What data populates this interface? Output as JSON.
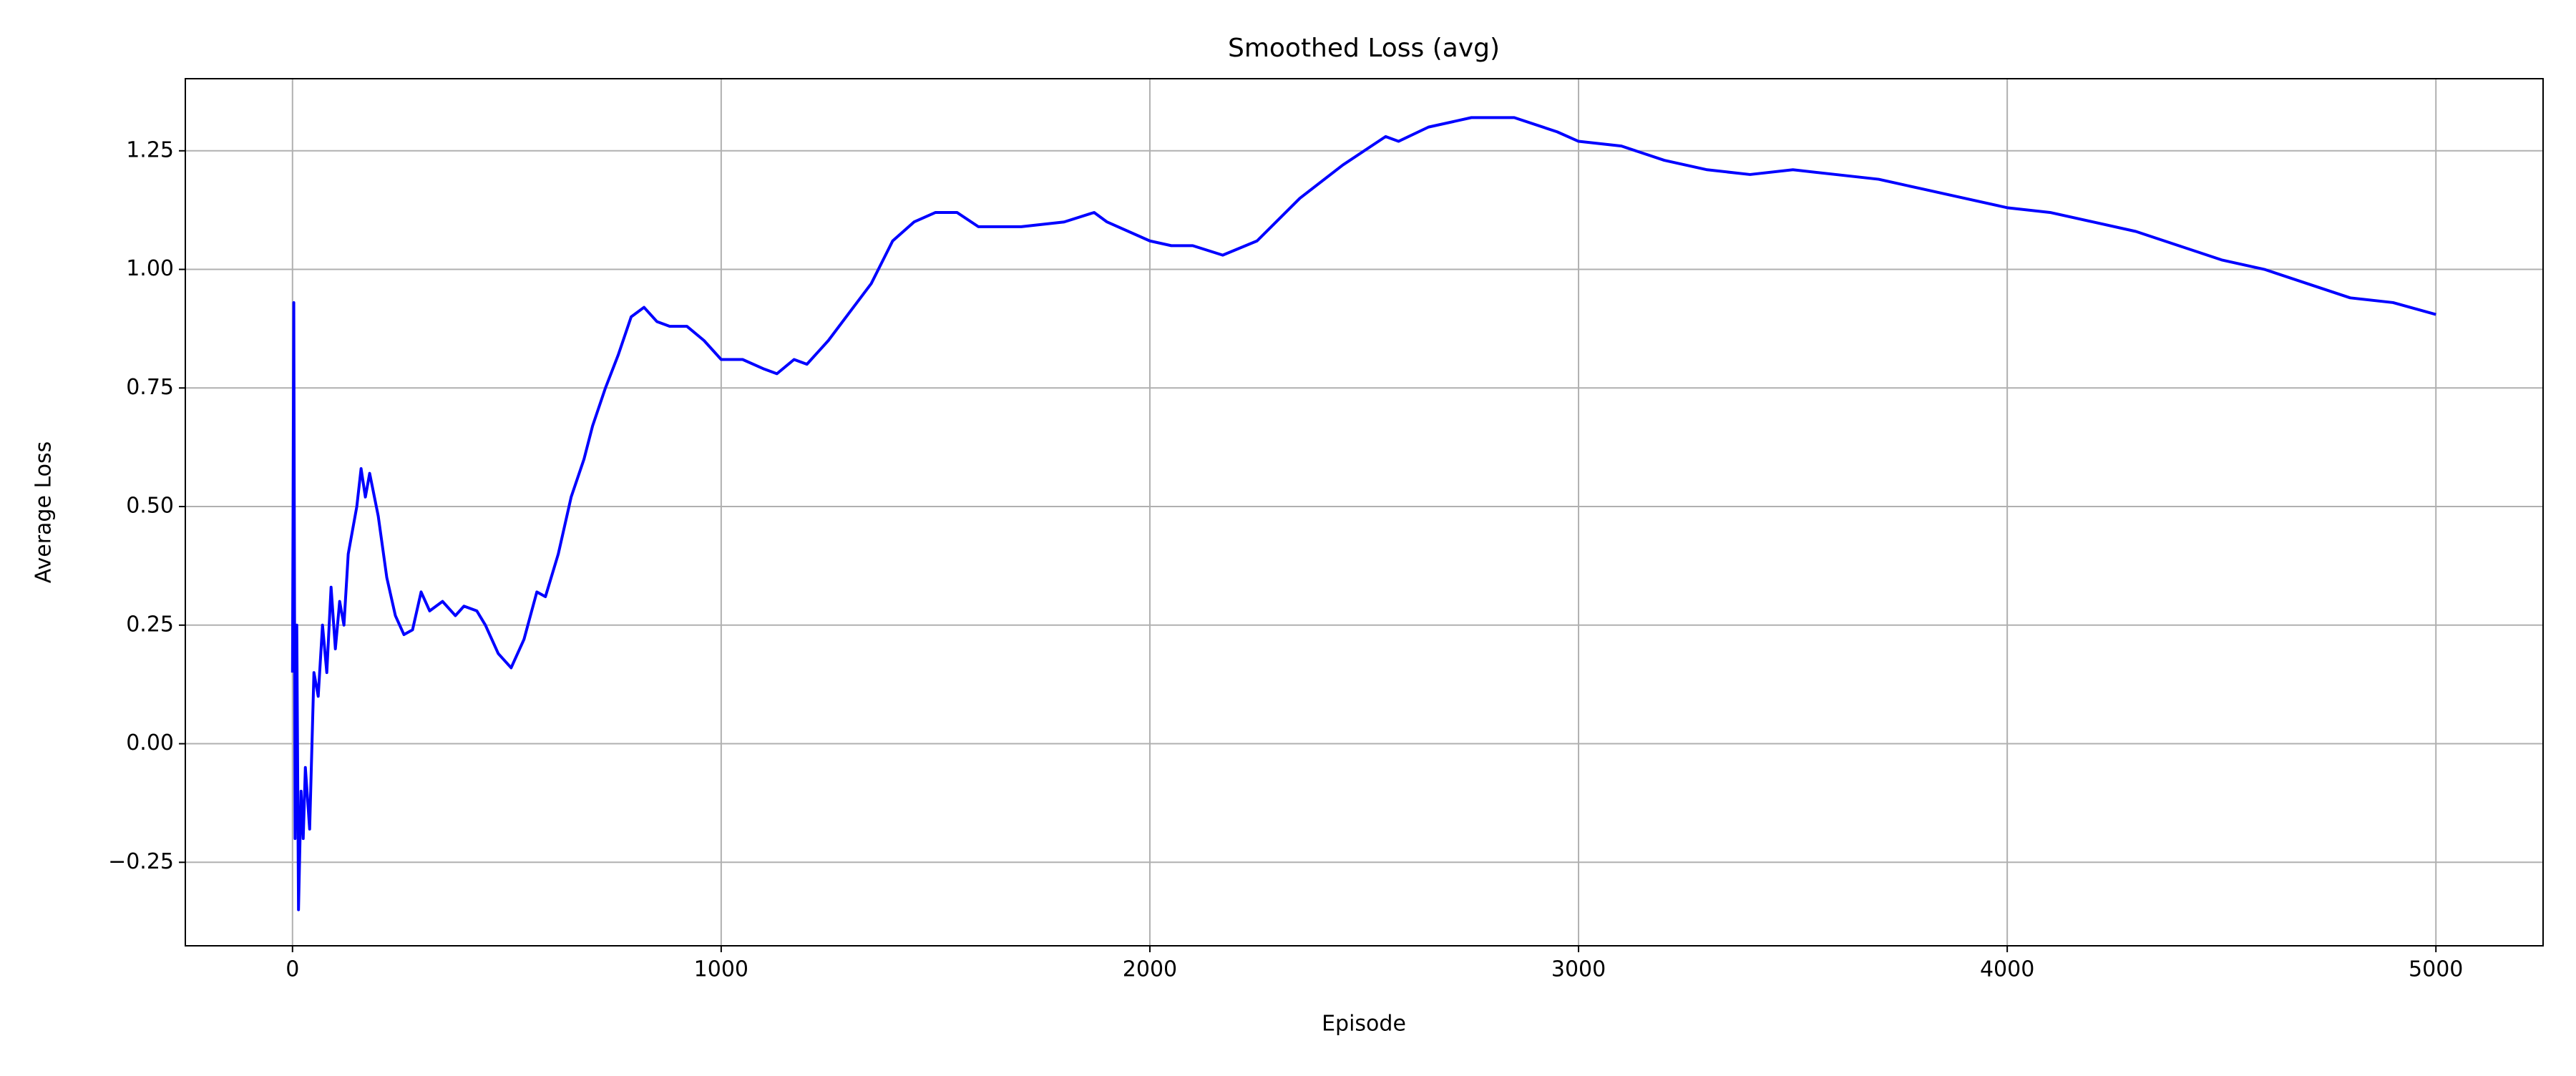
{
  "chart_data": {
    "type": "line",
    "title": "Smoothed Loss (avg)",
    "x_label": "Episode",
    "y_label": "Average Loss",
    "x": [
      0,
      3,
      6,
      10,
      14,
      20,
      25,
      30,
      40,
      50,
      60,
      70,
      80,
      90,
      100,
      110,
      120,
      130,
      150,
      160,
      170,
      180,
      200,
      220,
      240,
      260,
      280,
      300,
      320,
      350,
      380,
      400,
      430,
      450,
      480,
      510,
      540,
      570,
      590,
      620,
      650,
      680,
      700,
      730,
      760,
      790,
      820,
      850,
      880,
      920,
      960,
      1000,
      1050,
      1100,
      1130,
      1170,
      1200,
      1250,
      1300,
      1350,
      1400,
      1450,
      1500,
      1550,
      1600,
      1700,
      1800,
      1870,
      1900,
      2000,
      2050,
      2100,
      2170,
      2250,
      2350,
      2450,
      2550,
      2580,
      2650,
      2750,
      2850,
      2950,
      3000,
      3100,
      3200,
      3300,
      3400,
      3500,
      3600,
      3700,
      3800,
      3900,
      4000,
      4100,
      4200,
      4300,
      4400,
      4500,
      4600,
      4700,
      4800,
      4900,
      5000
    ],
    "series": [
      {
        "name": "Smoothed Loss",
        "color": "#0000ff",
        "values": [
          0.15,
          0.93,
          -0.2,
          0.25,
          -0.35,
          -0.1,
          -0.2,
          -0.05,
          -0.18,
          0.15,
          0.1,
          0.25,
          0.15,
          0.33,
          0.2,
          0.3,
          0.25,
          0.4,
          0.5,
          0.58,
          0.52,
          0.57,
          0.48,
          0.35,
          0.27,
          0.23,
          0.24,
          0.32,
          0.28,
          0.3,
          0.27,
          0.29,
          0.28,
          0.25,
          0.19,
          0.16,
          0.22,
          0.32,
          0.31,
          0.4,
          0.52,
          0.6,
          0.67,
          0.75,
          0.82,
          0.9,
          0.92,
          0.89,
          0.88,
          0.88,
          0.85,
          0.81,
          0.81,
          0.79,
          0.78,
          0.81,
          0.8,
          0.85,
          0.91,
          0.97,
          1.06,
          1.1,
          1.12,
          1.12,
          1.09,
          1.09,
          1.1,
          1.12,
          1.1,
          1.06,
          1.05,
          1.05,
          1.03,
          1.06,
          1.15,
          1.22,
          1.28,
          1.27,
          1.3,
          1.32,
          1.32,
          1.29,
          1.27,
          1.26,
          1.23,
          1.21,
          1.2,
          1.21,
          1.2,
          1.19,
          1.17,
          1.15,
          1.13,
          1.12,
          1.1,
          1.08,
          1.05,
          1.02,
          1.0,
          0.97,
          0.94,
          0.93,
          0.905
        ]
      }
    ],
    "xlim": [
      -250,
      5250
    ],
    "xticks": [
      0,
      1000,
      2000,
      3000,
      4000,
      5000
    ],
    "ylim": [
      -0.426,
      1.402
    ],
    "yticks": [
      {
        "value": -0.25,
        "label": "−0.25"
      },
      {
        "value": 0,
        "label": "0.00"
      },
      {
        "value": 0.25,
        "label": "0.25"
      },
      {
        "value": 0.5,
        "label": "0.50"
      },
      {
        "value": 0.75,
        "label": "0.75"
      },
      {
        "value": 1,
        "label": "1.00"
      },
      {
        "value": 1.25,
        "label": "1.25"
      }
    ],
    "grid": true
  }
}
